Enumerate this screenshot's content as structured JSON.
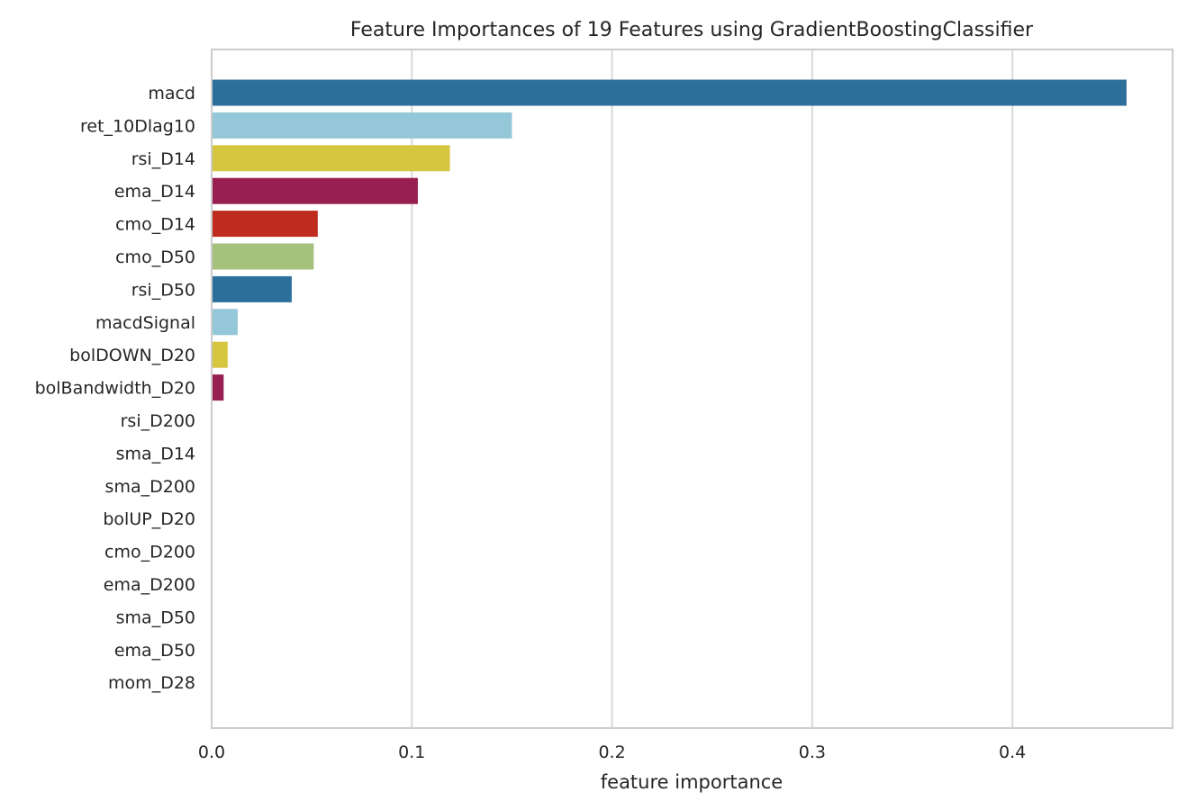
{
  "chart_data": {
    "type": "bar",
    "orientation": "horizontal",
    "title": "Feature Importances of 19 Features using GradientBoostingClassifier",
    "xlabel": "feature importance",
    "ylabel": "",
    "xlim": [
      0.0,
      0.48
    ],
    "xticks": [
      0.0,
      0.1,
      0.2,
      0.3,
      0.4
    ],
    "xtick_labels": [
      "0.0",
      "0.1",
      "0.2",
      "0.3",
      "0.4"
    ],
    "grid": true,
    "categories": [
      "macd",
      "ret_10Dlag10",
      "rsi_D14",
      "ema_D14",
      "cmo_D14",
      "cmo_D50",
      "rsi_D50",
      "macdSignal",
      "bolDOWN_D20",
      "bolBandwidth_D20",
      "rsi_D200",
      "sma_D14",
      "sma_D200",
      "bolUP_D20",
      "cmo_D200",
      "ema_D200",
      "sma_D50",
      "ema_D50",
      "mom_D28"
    ],
    "values": [
      0.457,
      0.15,
      0.119,
      0.103,
      0.053,
      0.051,
      0.04,
      0.013,
      0.008,
      0.006,
      0.0,
      0.0,
      0.0,
      0.0,
      0.0,
      0.0,
      0.0,
      0.0,
      0.0
    ],
    "colors": [
      "#2c6f9b",
      "#94c7d7",
      "#d5c53f",
      "#981f51",
      "#bf2b1f",
      "#a6c17d",
      "#2c6f9b",
      "#94c7d7",
      "#d5c53f",
      "#981f51",
      "#bf2b1f",
      "#a6c17d",
      "#2c6f9b",
      "#94c7d7",
      "#d5c53f",
      "#981f51",
      "#bf2b1f",
      "#a6c17d",
      "#2c6f9b"
    ],
    "grid_color": "#d9d9d9",
    "frame_color": "#cccccc",
    "text_color": "#262626"
  }
}
